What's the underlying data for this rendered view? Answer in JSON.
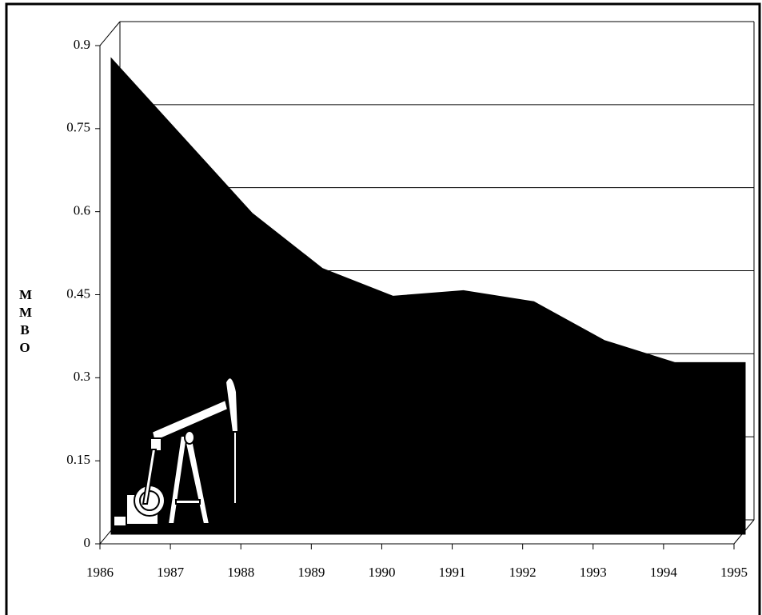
{
  "chart_data": {
    "type": "area",
    "ylabel": "MMBO",
    "x": [
      1986,
      1987,
      1988,
      1989,
      1990,
      1991,
      1992,
      1993,
      1994,
      1995
    ],
    "values": [
      0.86,
      0.72,
      0.58,
      0.48,
      0.43,
      0.44,
      0.42,
      0.35,
      0.31,
      0.31
    ],
    "color": "#000000",
    "xlim": [
      1986,
      1995
    ],
    "xticks": [
      1986,
      1987,
      1988,
      1989,
      1990,
      1991,
      1992,
      1993,
      1994,
      1995
    ],
    "ylim": [
      0,
      0.9
    ],
    "yticks": [
      0,
      0.15,
      0.3,
      0.45,
      0.6,
      0.75,
      0.9
    ],
    "grid": true
  }
}
